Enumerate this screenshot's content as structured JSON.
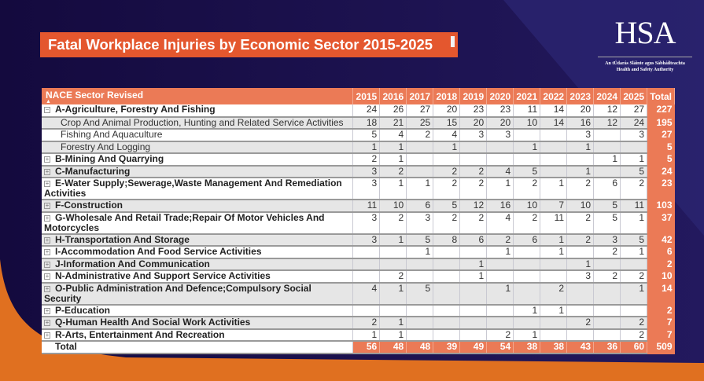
{
  "title": "Fatal Workplace Injuries by Economic Sector 2015-2025",
  "logo": {
    "name": "HSA",
    "line1": "An tÚdarás Sláinte agus Sábháilteachta",
    "line2": "Health and Safety Authority"
  },
  "colors": {
    "accent": "#eb7a56",
    "title_bg": "#e4572e",
    "background": "#170d45",
    "orange": "#e07020"
  },
  "table": {
    "header_label": "NACE Sector Revised",
    "sort_icon": "▲",
    "years": [
      "2015",
      "2016",
      "2017",
      "2018",
      "2019",
      "2020",
      "2021",
      "2022",
      "2023",
      "2024",
      "2025"
    ],
    "total_label": "Total",
    "rows": [
      {
        "label": "A-Agriculture, Forestry And Fishing",
        "level": 0,
        "expand": "⊟",
        "values": [
          "24",
          "26",
          "27",
          "20",
          "23",
          "23",
          "11",
          "14",
          "20",
          "12",
          "27"
        ],
        "total": "227"
      },
      {
        "label": "Crop And Animal Production, Hunting and Related Service Activities",
        "level": 1,
        "values": [
          "18",
          "21",
          "25",
          "15",
          "20",
          "20",
          "10",
          "14",
          "16",
          "12",
          "24"
        ],
        "total": "195"
      },
      {
        "label": "Fishing And Aquaculture",
        "level": 1,
        "values": [
          "5",
          "4",
          "2",
          "4",
          "3",
          "3",
          "",
          "",
          "3",
          "",
          "3"
        ],
        "total": "27"
      },
      {
        "label": "Forestry And Logging",
        "level": 1,
        "values": [
          "1",
          "1",
          "",
          "1",
          "",
          "",
          "1",
          "",
          "1",
          "",
          ""
        ],
        "total": "5"
      },
      {
        "label": "B-Mining And Quarrying",
        "level": 0,
        "expand": "⊞",
        "values": [
          "2",
          "1",
          "",
          "",
          "",
          "",
          "",
          "",
          "",
          "1",
          "1"
        ],
        "total": "5"
      },
      {
        "label": "C-Manufacturing",
        "level": 0,
        "expand": "⊞",
        "values": [
          "3",
          "2",
          "",
          "2",
          "2",
          "4",
          "5",
          "",
          "1",
          "",
          "5"
        ],
        "total": "24"
      },
      {
        "label": "E-Water Supply;Sewerage,Waste Management And Remediation Activities",
        "level": 0,
        "expand": "⊞",
        "tall": true,
        "values": [
          "3",
          "1",
          "1",
          "2",
          "2",
          "1",
          "2",
          "1",
          "2",
          "6",
          "2"
        ],
        "total": "23"
      },
      {
        "label": "F-Construction",
        "level": 0,
        "expand": "⊞",
        "values": [
          "11",
          "10",
          "6",
          "5",
          "12",
          "16",
          "10",
          "7",
          "10",
          "5",
          "11"
        ],
        "total": "103"
      },
      {
        "label": "G-Wholesale And Retail Trade;Repair Of Motor Vehicles And Motorcycles",
        "level": 0,
        "expand": "⊞",
        "tall": true,
        "values": [
          "3",
          "2",
          "3",
          "2",
          "2",
          "4",
          "2",
          "11",
          "2",
          "5",
          "1"
        ],
        "total": "37"
      },
      {
        "label": "H-Transportation And Storage",
        "level": 0,
        "expand": "⊞",
        "values": [
          "3",
          "1",
          "5",
          "8",
          "6",
          "2",
          "6",
          "1",
          "2",
          "3",
          "5"
        ],
        "total": "42"
      },
      {
        "label": "I-Accommodation And Food Service Activities",
        "level": 0,
        "expand": "⊞",
        "values": [
          "",
          "",
          "1",
          "",
          "",
          "1",
          "",
          "1",
          "",
          "2",
          "1"
        ],
        "total": "6"
      },
      {
        "label": "J-Information And Communication",
        "level": 0,
        "expand": "⊞",
        "values": [
          "",
          "",
          "",
          "",
          "1",
          "",
          "",
          "",
          "1",
          "",
          ""
        ],
        "total": "2"
      },
      {
        "label": "N-Administrative And Support Service Activities",
        "level": 0,
        "expand": "⊞",
        "values": [
          "",
          "2",
          "",
          "",
          "1",
          "",
          "",
          "",
          "3",
          "2",
          "2"
        ],
        "total": "10"
      },
      {
        "label": "O-Public Administration And Defence;Compulsory Social Security",
        "level": 0,
        "expand": "⊞",
        "values": [
          "4",
          "1",
          "5",
          "",
          "",
          "1",
          "",
          "2",
          "",
          "",
          "1"
        ],
        "total": "14"
      },
      {
        "label": "P-Education",
        "level": 0,
        "expand": "⊞",
        "values": [
          "",
          "",
          "",
          "",
          "",
          "",
          "1",
          "1",
          "",
          "",
          ""
        ],
        "total": "2"
      },
      {
        "label": "Q-Human Health And Social Work Activities",
        "level": 0,
        "expand": "⊞",
        "values": [
          "2",
          "1",
          "",
          "",
          "",
          "",
          "",
          "",
          "2",
          "",
          "2"
        ],
        "total": "7"
      },
      {
        "label": "R-Arts, Entertainment And Recreation",
        "level": 0,
        "expand": "⊞",
        "values": [
          "1",
          "1",
          "",
          "",
          "",
          "2",
          "1",
          "",
          "",
          "",
          "2"
        ],
        "total": "7"
      }
    ],
    "totals": {
      "label": "Total",
      "values": [
        "56",
        "48",
        "48",
        "39",
        "49",
        "54",
        "38",
        "38",
        "43",
        "36",
        "60"
      ],
      "total": "509"
    }
  }
}
